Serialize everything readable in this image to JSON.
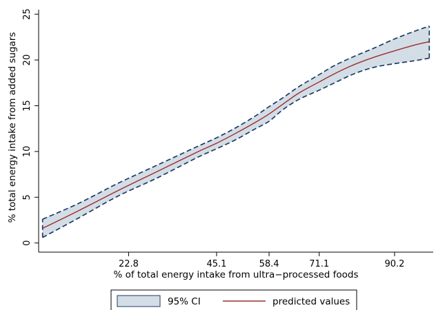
{
  "chart_data": {
    "type": "line",
    "xlabel": "% of total energy intake from ultra−processed foods",
    "ylabel": "% total energy intake from added sugars",
    "x_ticks": [
      "22.8",
      "45.1",
      "58.4",
      "71.1",
      "90.2"
    ],
    "y_ticks": [
      "0",
      "5",
      "10",
      "15",
      "20",
      "25"
    ],
    "xlim": [
      0,
      100
    ],
    "ylim": [
      -1,
      25.5
    ],
    "grid": false,
    "legend_position": "bottom",
    "legend": {
      "ci_label": "95% CI",
      "line_label": "predicted values"
    },
    "x": [
      1,
      10,
      20,
      30,
      40,
      45.1,
      50,
      55,
      58.4,
      62,
      66,
      71.1,
      75,
      80,
      85,
      90.2,
      95,
      99
    ],
    "series": [
      {
        "name": "predicted values",
        "values": [
          1.6,
          3.5,
          5.7,
          7.8,
          9.9,
          10.9,
          12.0,
          13.2,
          14.1,
          15.2,
          16.4,
          17.6,
          18.5,
          19.5,
          20.3,
          21.0,
          21.6,
          22.0
        ]
      },
      {
        "name": "95% CI lower",
        "values": [
          0.6,
          2.7,
          5.1,
          7.1,
          9.3,
          10.3,
          11.3,
          12.5,
          13.3,
          14.6,
          15.7,
          16.7,
          17.5,
          18.5,
          19.2,
          19.6,
          19.9,
          20.2
        ]
      },
      {
        "name": "95% CI upper",
        "values": [
          2.6,
          4.3,
          6.5,
          8.5,
          10.5,
          11.5,
          12.6,
          13.9,
          14.9,
          15.9,
          17.1,
          18.4,
          19.4,
          20.4,
          21.3,
          22.3,
          23.1,
          23.7
        ]
      }
    ],
    "colors": {
      "ci_fill": "#d3dde6",
      "ci_border": "#1c3a63",
      "line": "#9e2b2f"
    }
  }
}
